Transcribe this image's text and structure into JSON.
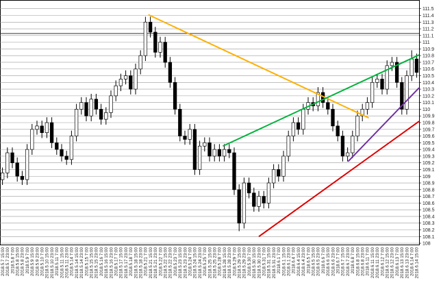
{
  "chart_data": {
    "type": "candlestick",
    "categories": [
      "2018.5.7 15:00",
      "2018.5.7 23:00",
      "2018.5.8 7:00",
      "2018.5.8 15:00",
      "2018.5.8 23:00",
      "2018.5.9 7:00",
      "2018.5.9 15:00",
      "2018.5.9 23:00",
      "2018.5.10 7:00",
      "2018.5.10 15:00",
      "2018.5.10 23:00",
      "2018.5.11 7:00",
      "2018.5.11 15:00",
      "2018.5.11 23:00",
      "2018.5.14 7:00",
      "2018.5.14 15:00",
      "2018.5.14 23:00",
      "2018.5.15 7:00",
      "2018.5.15 15:00",
      "2018.5.15 23:00",
      "2018.5.16 7:00",
      "2018.5.16 15:00",
      "2018.5.16 23:00",
      "2018.5.17 7:00",
      "2018.5.17 15:00",
      "2018.5.17 23:00",
      "2018.5.18 7:00",
      "2018.5.18 15:00",
      "2018.5.18 23:00",
      "2018.5.21 7:00",
      "2018.5.21 15:00",
      "2018.5.21 23:00",
      "2018.5.22 7:00",
      "2018.5.22 15:00",
      "2018.5.22 23:00",
      "2018.5.23 7:00",
      "2018.5.23 15:00",
      "2018.5.23 23:00",
      "2018.5.24 7:00",
      "2018.5.24 15:00",
      "2018.5.24 23:00",
      "2018.5.25 7:00",
      "2018.5.25 15:00",
      "2018.5.25 23:00",
      "2018.5.28 7:00",
      "2018.5.28 15:00",
      "2018.5.28 23:00",
      "2018.5.29 7:00",
      "2018.5.29 15:00",
      "2018.5.29 23:00",
      "2018.5.30 7:00",
      "2018.5.30 15:00",
      "2018.5.30 23:00",
      "2018.5.31 7:00",
      "2018.5.31 15:00",
      "2018.5.31 23:00",
      "2018.6.1 7:00",
      "2018.6.1 15:00",
      "2018.6.1 23:00",
      "2018.6.4 7:00",
      "2018.6.4 15:00",
      "2018.6.4 23:00",
      "2018.6.5 7:00",
      "2018.6.5 15:00",
      "2018.6.5 23:00",
      "2018.6.6 7:00",
      "2018.6.6 15:00",
      "2018.6.6 23:00",
      "2018.6.7 7:00",
      "2018.6.7 15:00",
      "2018.6.7 23:00",
      "2018.6.8 7:00",
      "2018.6.8 15:00",
      "2018.6.8 23:00",
      "2018.6.11 7:00",
      "2018.6.11 15:00",
      "2018.6.11 23:00",
      "2018.6.12 7:00",
      "2018.6.12 15:00",
      "2018.6.12 23:00",
      "2018.6.13 7:00",
      "2018.6.13 15:00",
      "2018.6.13 23:00",
      "2018.6.14 7:00",
      "2018.6.14 15:00"
    ],
    "open": [
      108.95,
      109.05,
      109.35,
      109.2,
      109.0,
      108.95,
      109.4,
      109.7,
      109.75,
      109.65,
      109.8,
      109.5,
      109.4,
      109.3,
      109.25,
      109.6,
      110.0,
      110.1,
      109.9,
      110.15,
      110.0,
      109.85,
      109.95,
      110.2,
      110.35,
      110.45,
      110.5,
      110.3,
      110.6,
      110.8,
      111.3,
      111.15,
      110.85,
      111.0,
      110.7,
      110.4,
      110.0,
      109.6,
      109.55,
      109.7,
      109.1,
      109.45,
      109.5,
      109.3,
      109.4,
      109.3,
      109.4,
      109.35,
      108.8,
      108.3,
      108.9,
      108.75,
      108.55,
      108.7,
      108.6,
      108.9,
      109.1,
      109.0,
      109.3,
      109.6,
      109.8,
      109.7,
      110.0,
      110.1,
      110.05,
      110.25,
      110.1,
      110.0,
      109.75,
      109.6,
      109.3,
      109.35,
      109.6,
      109.9,
      110.0,
      110.1,
      110.4,
      110.45,
      110.3,
      110.65,
      110.7,
      110.4,
      110.0,
      110.5,
      110.75
    ],
    "high": [
      109.13,
      109.43,
      109.43,
      109.28,
      109.08,
      109.48,
      109.78,
      109.83,
      109.83,
      109.88,
      109.88,
      109.58,
      109.48,
      109.38,
      109.68,
      110.08,
      110.18,
      110.18,
      110.23,
      110.23,
      110.08,
      110.03,
      110.28,
      110.43,
      110.53,
      110.58,
      110.58,
      110.68,
      110.88,
      111.38,
      111.38,
      111.23,
      111.08,
      111.08,
      110.78,
      110.48,
      110.08,
      109.68,
      109.78,
      109.78,
      109.53,
      109.58,
      109.58,
      109.48,
      109.48,
      109.48,
      109.48,
      109.43,
      108.88,
      108.98,
      108.98,
      108.83,
      108.78,
      108.78,
      108.98,
      109.18,
      109.18,
      109.38,
      109.68,
      109.88,
      109.88,
      110.08,
      110.18,
      110.18,
      110.33,
      110.33,
      110.18,
      110.08,
      109.83,
      109.68,
      109.43,
      109.68,
      109.98,
      110.08,
      110.18,
      110.48,
      110.53,
      110.53,
      110.73,
      110.78,
      110.78,
      110.48,
      110.58,
      110.88,
      110.83
    ],
    "low": [
      108.87,
      108.97,
      109.12,
      108.92,
      108.87,
      108.87,
      109.32,
      109.62,
      109.57,
      109.57,
      109.42,
      109.32,
      109.22,
      109.17,
      109.17,
      109.52,
      109.92,
      109.82,
      109.82,
      109.92,
      109.77,
      109.77,
      109.87,
      110.12,
      110.27,
      110.37,
      110.22,
      110.22,
      110.52,
      110.72,
      111.07,
      110.77,
      110.77,
      110.62,
      110.32,
      109.92,
      109.52,
      109.47,
      109.47,
      109.02,
      109.02,
      109.37,
      109.22,
      109.22,
      109.22,
      109.22,
      109.27,
      108.72,
      108.18,
      108.22,
      108.67,
      108.47,
      108.47,
      108.52,
      108.52,
      108.82,
      108.92,
      108.92,
      109.22,
      109.52,
      109.62,
      109.62,
      109.92,
      109.97,
      109.97,
      110.02,
      109.92,
      109.67,
      109.52,
      109.22,
      109.22,
      109.27,
      109.52,
      109.82,
      109.92,
      110.02,
      110.32,
      110.22,
      110.22,
      110.57,
      110.32,
      109.92,
      109.92,
      110.42,
      110.47
    ],
    "close": [
      109.05,
      109.35,
      109.2,
      109.0,
      108.95,
      109.4,
      109.7,
      109.75,
      109.65,
      109.8,
      109.5,
      109.4,
      109.3,
      109.25,
      109.6,
      110.0,
      110.1,
      109.9,
      110.15,
      110.0,
      109.85,
      109.95,
      110.2,
      110.35,
      110.45,
      110.5,
      110.3,
      110.6,
      110.8,
      111.3,
      111.15,
      110.85,
      111.0,
      110.7,
      110.4,
      110.0,
      109.6,
      109.55,
      109.7,
      109.1,
      109.45,
      109.5,
      109.3,
      109.4,
      109.3,
      109.4,
      109.35,
      108.8,
      108.3,
      108.9,
      108.75,
      108.55,
      108.7,
      108.6,
      108.9,
      109.1,
      109.0,
      109.3,
      109.6,
      109.8,
      109.7,
      110.0,
      110.1,
      110.05,
      110.25,
      110.1,
      110.0,
      109.75,
      109.6,
      109.3,
      109.35,
      109.6,
      109.9,
      110.0,
      110.1,
      110.4,
      110.45,
      110.3,
      110.65,
      110.7,
      110.4,
      110.0,
      110.5,
      110.75,
      110.55
    ],
    "up_color": "#ffffff",
    "down_color": "#000000",
    "ylim": [
      107.97,
      111.63
    ],
    "yticks": [
      108,
      108.1,
      108.2,
      108.3,
      108.4,
      108.5,
      108.6,
      108.7,
      108.8,
      108.9,
      109,
      109.1,
      109.2,
      109.3,
      109.4,
      109.5,
      109.6,
      109.7,
      109.8,
      109.9,
      110,
      110.1,
      110.2,
      110.3,
      110.4,
      110.5,
      110.6,
      110.7,
      110.8,
      110.9,
      111,
      111.1,
      111.2,
      111.3,
      111.4,
      111.5
    ],
    "grid": true,
    "horizontal_line": 111.13,
    "trendlines": [
      {
        "color": "#ffb000",
        "from": [
          29.6,
          111.41
        ],
        "to": [
          74.3,
          109.87
        ]
      },
      {
        "color": "#00b33c",
        "from": [
          44.7,
          109.45
        ],
        "to": [
          85,
          110.81
        ]
      },
      {
        "color": "#7030a0",
        "from": [
          70.1,
          109.22
        ],
        "to": [
          85,
          110.32
        ]
      },
      {
        "color": "#e00000",
        "from": [
          52,
          108.1
        ],
        "to": [
          85,
          109.82
        ]
      }
    ]
  }
}
